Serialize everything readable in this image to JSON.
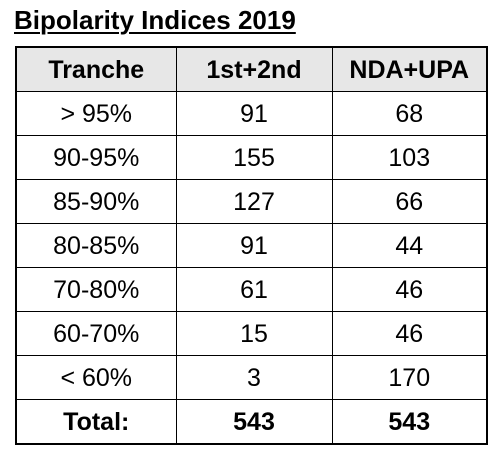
{
  "title": "Bipolarity Indices 2019",
  "table": {
    "headers": [
      "Tranche",
      "1st+2nd",
      "NDA+UPA"
    ],
    "rows": [
      [
        "> 95%",
        "91",
        "68"
      ],
      [
        "90-95%",
        "155",
        "103"
      ],
      [
        "85-90%",
        "127",
        "66"
      ],
      [
        "80-85%",
        "91",
        "44"
      ],
      [
        "70-80%",
        "61",
        "46"
      ],
      [
        "60-70%",
        "15",
        "46"
      ],
      [
        "< 60%",
        "3",
        "170"
      ]
    ],
    "total": [
      "Total:",
      "543",
      "543"
    ]
  },
  "colors": {
    "header_bg": "#e7e7e7",
    "border": "#000000"
  }
}
